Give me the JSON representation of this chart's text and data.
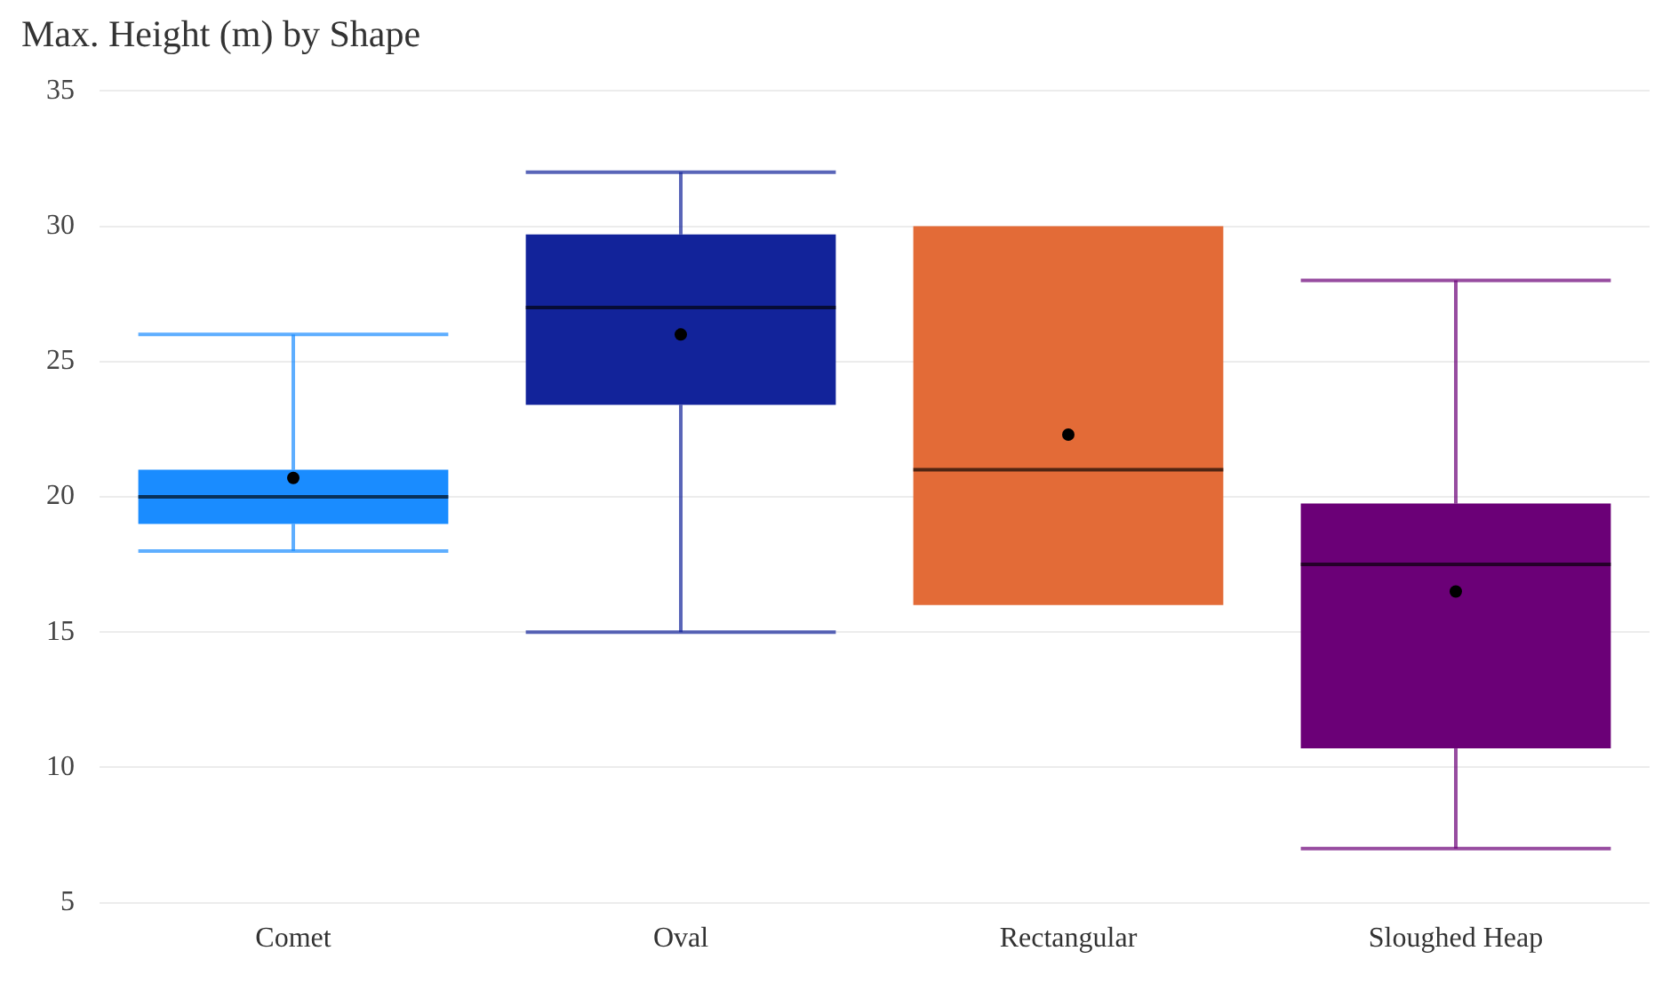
{
  "chart_data": {
    "type": "box",
    "title": "Max. Height (m) by Shape",
    "categories": [
      "Comet",
      "Oval",
      "Rectangular",
      "Sloughed Heap"
    ],
    "boxes": [
      {
        "low": 18,
        "q1": 19,
        "median": 20,
        "q3": 21,
        "high": 26,
        "mean": 20.7
      },
      {
        "low": 15,
        "q1": 23.4,
        "median": 27,
        "q3": 29.7,
        "high": 32,
        "mean": 26
      },
      {
        "low": 16,
        "q1": 16,
        "median": 21,
        "q3": 30,
        "high": 30,
        "mean": 22.3
      },
      {
        "low": 7,
        "q1": 10.7,
        "median": 17.5,
        "q3": 19.75,
        "high": 28,
        "mean": 16.5
      }
    ],
    "colors": [
      "#1a8cff",
      "#12239a",
      "#e36b37",
      "#6b0077"
    ],
    "ylim": [
      5,
      35
    ],
    "yticks": [
      5,
      10,
      15,
      20,
      25,
      30,
      35
    ],
    "grid": "y"
  }
}
